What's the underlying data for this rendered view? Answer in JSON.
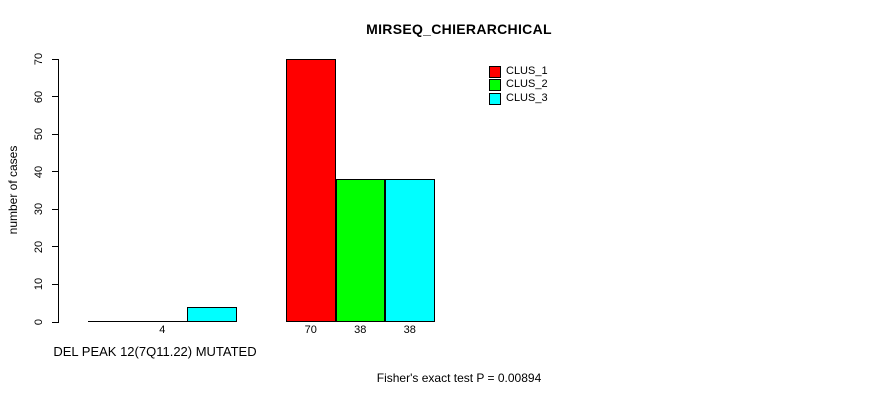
{
  "chart_data": {
    "type": "bar",
    "title": "MIRSEQ_CHIERARCHICAL",
    "xlabel": "",
    "ylabel": "number of cases",
    "categories": [
      "DEL PEAK 12(7Q11.22) MUTATED",
      ""
    ],
    "series": [
      {
        "name": "CLUS_1",
        "color": "#ff0000",
        "values": [
          0,
          70
        ]
      },
      {
        "name": "CLUS_2",
        "color": "#00ff00",
        "values": [
          0,
          38
        ]
      },
      {
        "name": "CLUS_3",
        "color": "#00ffff",
        "values": [
          4,
          38
        ]
      }
    ],
    "bar_value_labels": [
      [
        null,
        "4"
      ],
      [
        "70",
        "38",
        "38"
      ]
    ],
    "ylim": [
      0,
      70
    ],
    "yticks": [
      "0",
      "10",
      "20",
      "30",
      "40",
      "50",
      "60",
      "70"
    ],
    "legend_position": "top-right",
    "grid": false,
    "annotation": "Fisher's exact test P = 0.00894"
  }
}
